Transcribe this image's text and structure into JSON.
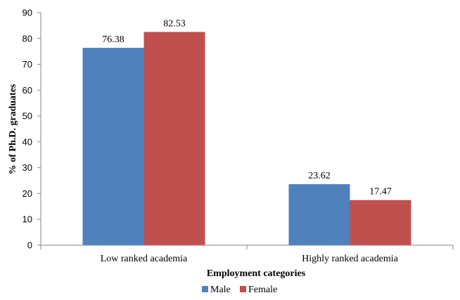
{
  "chart_data": {
    "type": "bar",
    "categories": [
      "Low ranked academia",
      "Highly ranked academia"
    ],
    "series": [
      {
        "name": "Male",
        "values": [
          76.38,
          23.62
        ],
        "labels": [
          "76.38",
          "23.62"
        ],
        "color": "#4F81BD"
      },
      {
        "name": "Female",
        "values": [
          82.53,
          17.47
        ],
        "labels": [
          "82.53",
          "17.47"
        ],
        "color": "#C0504D"
      }
    ],
    "xlabel": "Employment categories",
    "ylabel": "% of Ph.D. graduates",
    "ylim": [
      0,
      90
    ],
    "yticks": [
      0,
      10,
      20,
      30,
      40,
      50,
      60,
      70,
      80,
      90
    ],
    "grid": false,
    "legend_position": "bottom"
  }
}
